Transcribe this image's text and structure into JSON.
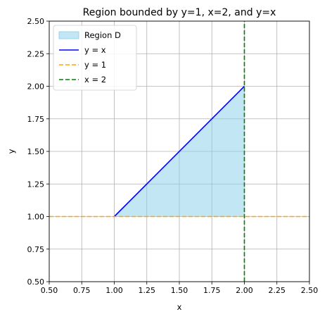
{
  "chart_data": {
    "type": "line",
    "title": "Region bounded by y=1, x=2, and y=x",
    "xlabel": "x",
    "ylabel": "y",
    "xlim": [
      0.5,
      2.5
    ],
    "ylim": [
      0.5,
      2.5
    ],
    "xticks": [
      "0.50",
      "0.75",
      "1.00",
      "1.25",
      "1.50",
      "1.75",
      "2.00",
      "2.25",
      "2.50"
    ],
    "yticks": [
      "0.50",
      "0.75",
      "1.00",
      "1.25",
      "1.50",
      "1.75",
      "2.00",
      "2.25",
      "2.50"
    ],
    "grid": true,
    "legend_position": "top-left",
    "region": {
      "name": "Region D",
      "color": "#87ceeb",
      "polygon": [
        [
          1.0,
          1.0
        ],
        [
          2.0,
          2.0
        ],
        [
          2.0,
          1.0
        ]
      ]
    },
    "series": [
      {
        "name": "y = x",
        "color": "#0000ff",
        "style": "solid",
        "x": [
          1.0,
          2.0
        ],
        "y": [
          1.0,
          2.0
        ]
      },
      {
        "name": "y = 1",
        "color": "#ffa500",
        "style": "dashed",
        "x": [
          0.5,
          2.5
        ],
        "y": [
          1.0,
          1.0
        ]
      },
      {
        "name": "x = 2",
        "color": "#008000",
        "style": "dashed",
        "x": [
          2.0,
          2.0
        ],
        "y": [
          0.5,
          2.5
        ]
      }
    ]
  }
}
